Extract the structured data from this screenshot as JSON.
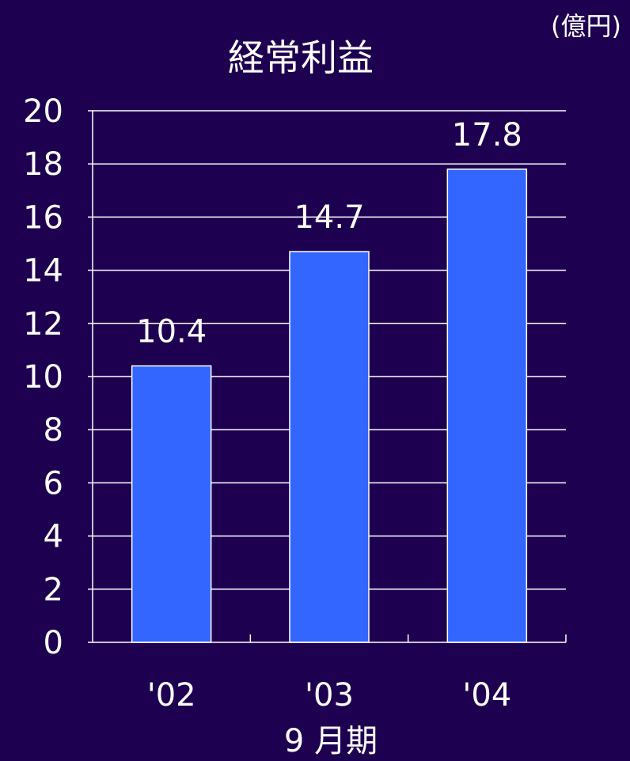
{
  "chart_data": {
    "type": "bar",
    "title": "経常利益",
    "unit": "(億円)",
    "xlabel": "9 月期",
    "ylabel": "",
    "categories": [
      "'02",
      "'03",
      "'04"
    ],
    "values": [
      10.4,
      14.7,
      17.8
    ],
    "data_labels": [
      "10.4",
      "14.7",
      "17.8"
    ],
    "ylim": [
      0,
      20
    ],
    "yticks": [
      "0",
      "2",
      "4",
      "6",
      "8",
      "10",
      "12",
      "14",
      "16",
      "18",
      "20"
    ],
    "grid": true,
    "legend": "none"
  },
  "colors": {
    "background": "#1e0050",
    "bar": "#3366ff",
    "axis": "#ffffff",
    "text": "#ffffff"
  }
}
